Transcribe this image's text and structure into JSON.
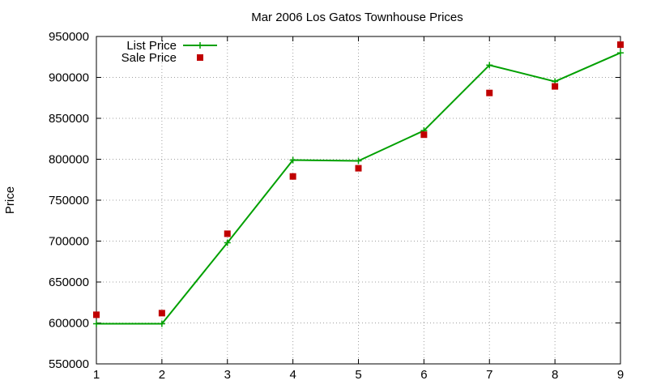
{
  "chart_data": {
    "type": "line",
    "title": "Mar 2006 Los Gatos Townhouse Prices",
    "xlabel": "",
    "ylabel": "Price",
    "x": [
      1,
      2,
      3,
      4,
      5,
      6,
      7,
      8,
      9
    ],
    "xlim": [
      1,
      9
    ],
    "ylim": [
      550000,
      950000
    ],
    "x_ticks": [
      "1",
      "2",
      "3",
      "4",
      "5",
      "6",
      "7",
      "8",
      "9"
    ],
    "y_ticks": [
      "550000",
      "600000",
      "650000",
      "700000",
      "750000",
      "800000",
      "850000",
      "900000",
      "950000"
    ],
    "grid": true,
    "legend_position": "top-left",
    "series": [
      {
        "name": "List Price",
        "style": "line+cross",
        "color": "#00a000",
        "values": [
          599000,
          599000,
          698000,
          799000,
          798000,
          835000,
          915000,
          895000,
          930000
        ]
      },
      {
        "name": "Sale Price",
        "style": "square-points",
        "color": "#c00000",
        "values": [
          610000,
          612000,
          709000,
          779000,
          789000,
          830000,
          881000,
          889000,
          940000
        ]
      }
    ]
  }
}
